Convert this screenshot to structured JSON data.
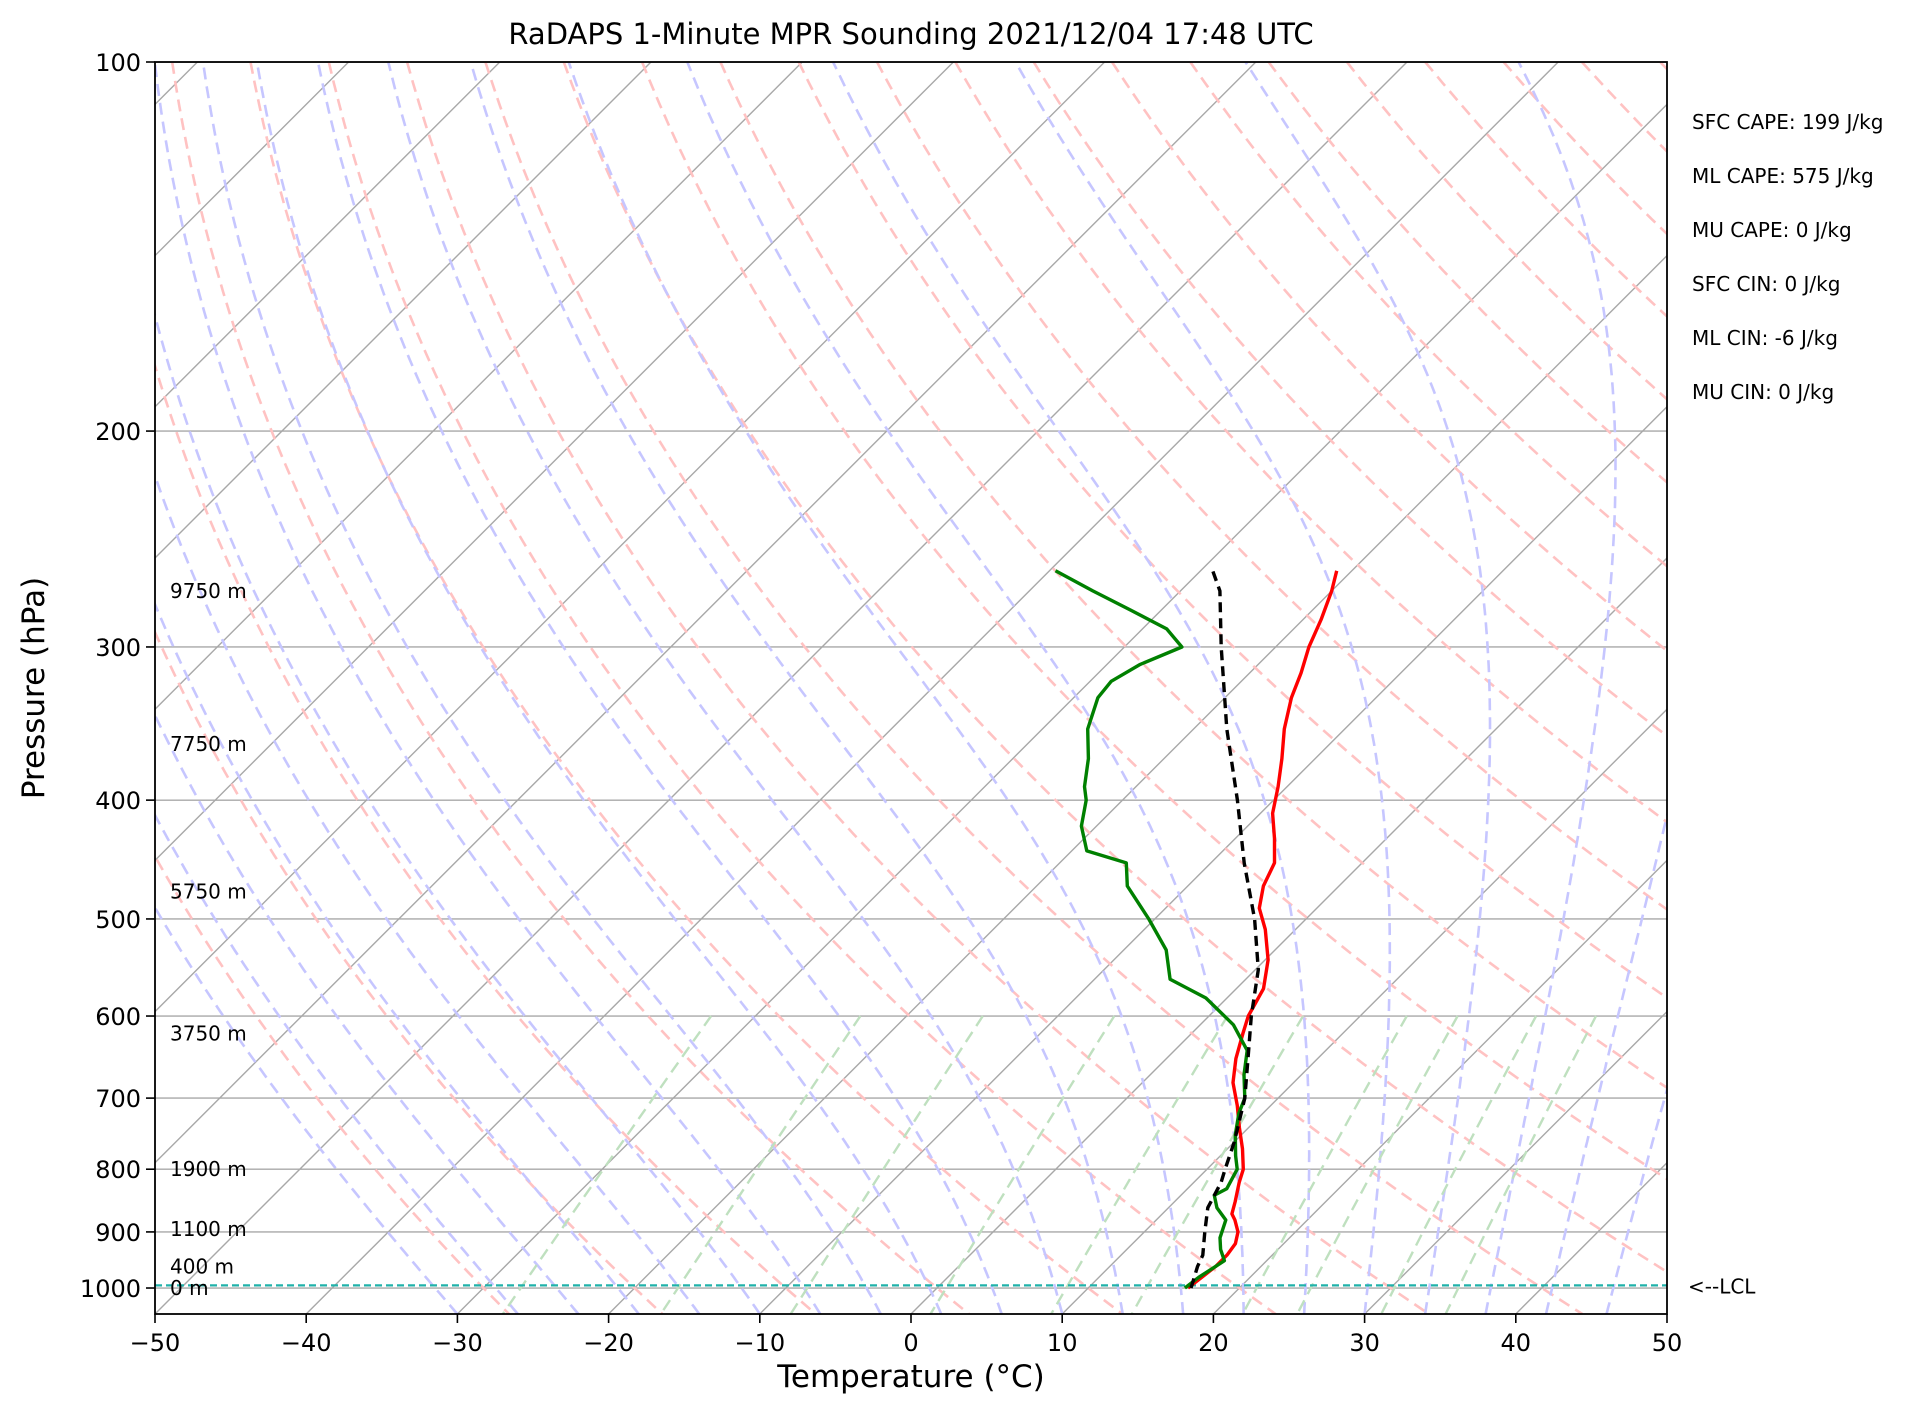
{
  "chart_data": {
    "type": "line",
    "title": "RaDAPS 1-Minute MPR Sounding 2021/12/04 17:48 UTC",
    "xlabel": "Temperature (°C)",
    "ylabel": "Pressure (hPa)",
    "xlim": [
      -50,
      50
    ],
    "ylim": [
      1050,
      100
    ],
    "y_scale": "log",
    "x_ticks": [
      -50,
      -40,
      -30,
      -20,
      -10,
      0,
      10,
      20,
      30,
      40,
      50
    ],
    "x_tick_labels": [
      "−50",
      "−40",
      "−30",
      "−20",
      "−10",
      "0",
      "10",
      "20",
      "30",
      "40",
      "50"
    ],
    "y_ticks": [
      100,
      200,
      300,
      400,
      500,
      600,
      700,
      800,
      900,
      1000
    ],
    "y_tick_labels": [
      "100",
      "200",
      "300",
      "400",
      "500",
      "600",
      "700",
      "800",
      "900",
      "1000"
    ],
    "grid": true,
    "colors": {
      "temperature": "#ff0000",
      "dewpoint": "#008000",
      "parcel": "#000000",
      "isotherm": "#a8a8a8",
      "dry_adiabat": "#ffc2c2",
      "moist_adiabat": "#c6c6ff",
      "mixing_ratio": "#bfe0bf",
      "lcl": "#20b2aa"
    },
    "series": [
      {
        "key": "temperature",
        "style": "solid",
        "points": [
          [
            1000,
            16.6
          ],
          [
            980,
            16.8
          ],
          [
            960,
            17.0
          ],
          [
            940,
            17.0
          ],
          [
            920,
            16.8
          ],
          [
            900,
            16.2
          ],
          [
            880,
            15.2
          ],
          [
            870,
            14.6
          ],
          [
            850,
            14.0
          ],
          [
            820,
            13.0
          ],
          [
            800,
            12.4
          ],
          [
            770,
            11.0
          ],
          [
            740,
            9.4
          ],
          [
            710,
            7.8
          ],
          [
            680,
            6.0
          ],
          [
            650,
            4.6
          ],
          [
            620,
            3.4
          ],
          [
            600,
            2.6
          ],
          [
            570,
            1.8
          ],
          [
            540,
            0.2
          ],
          [
            510,
            -2.0
          ],
          [
            490,
            -3.8
          ],
          [
            470,
            -5.0
          ],
          [
            450,
            -5.8
          ],
          [
            430,
            -7.4
          ],
          [
            410,
            -9.2
          ],
          [
            390,
            -10.6
          ],
          [
            370,
            -12.2
          ],
          [
            350,
            -14.0
          ],
          [
            330,
            -15.6
          ],
          [
            315,
            -16.6
          ],
          [
            300,
            -17.8
          ],
          [
            285,
            -18.8
          ],
          [
            270,
            -20.0
          ],
          [
            260,
            -21.0
          ]
        ]
      },
      {
        "key": "dewpoint",
        "style": "solid",
        "points": [
          [
            1000,
            16.4
          ],
          [
            980,
            16.6
          ],
          [
            960,
            17.0
          ],
          [
            950,
            17.2
          ],
          [
            930,
            16.2
          ],
          [
            910,
            15.4
          ],
          [
            880,
            14.6
          ],
          [
            860,
            13.2
          ],
          [
            840,
            12.2
          ],
          [
            830,
            12.6
          ],
          [
            800,
            12.0
          ],
          [
            780,
            11.0
          ],
          [
            750,
            9.6
          ],
          [
            720,
            8.4
          ],
          [
            700,
            7.8
          ],
          [
            670,
            6.2
          ],
          [
            640,
            4.8
          ],
          [
            610,
            2.2
          ],
          [
            580,
            -1.4
          ],
          [
            560,
            -5.0
          ],
          [
            530,
            -7.2
          ],
          [
            500,
            -10.4
          ],
          [
            470,
            -14.0
          ],
          [
            450,
            -15.6
          ],
          [
            440,
            -19.0
          ],
          [
            420,
            -21.0
          ],
          [
            400,
            -22.4
          ],
          [
            390,
            -23.4
          ],
          [
            370,
            -25.0
          ],
          [
            350,
            -27.0
          ],
          [
            330,
            -28.4
          ],
          [
            320,
            -28.6
          ],
          [
            310,
            -27.8
          ],
          [
            300,
            -26.2
          ],
          [
            290,
            -28.4
          ],
          [
            280,
            -32.0
          ],
          [
            270,
            -35.8
          ],
          [
            260,
            -39.6
          ]
        ]
      },
      {
        "key": "parcel",
        "style": "dashed",
        "points": [
          [
            1000,
            16.8
          ],
          [
            960,
            15.8
          ],
          [
            940,
            15.4
          ],
          [
            900,
            14.0
          ],
          [
            860,
            12.6
          ],
          [
            820,
            11.8
          ],
          [
            800,
            11.2
          ],
          [
            760,
            10.0
          ],
          [
            700,
            7.8
          ],
          [
            650,
            5.4
          ],
          [
            600,
            2.8
          ],
          [
            550,
            0.2
          ],
          [
            500,
            -3.4
          ],
          [
            450,
            -7.8
          ],
          [
            400,
            -12.4
          ],
          [
            350,
            -17.8
          ],
          [
            300,
            -23.6
          ],
          [
            270,
            -27.4
          ],
          [
            260,
            -29.2
          ]
        ]
      }
    ],
    "height_labels": [
      {
        "text": "9750 m",
        "p": 270
      },
      {
        "text": "7750 m",
        "p": 360
      },
      {
        "text": "5750 m",
        "p": 475
      },
      {
        "text": "3750 m",
        "p": 620
      },
      {
        "text": "1900 m",
        "p": 800
      },
      {
        "text": "1100 m",
        "p": 895
      },
      {
        "text": "400 m",
        "p": 960
      },
      {
        "text": "0 m",
        "p": 1000
      }
    ],
    "lcl": {
      "pressure": 995,
      "label": "<--LCL"
    },
    "indices": [
      "SFC CAPE: 199 J/kg",
      "ML CAPE: 575 J/kg",
      "MU CAPE: 0 J/kg",
      "SFC CIN: 0 J/kg",
      "ML CIN: -6 J/kg",
      "MU CIN: 0 J/kg"
    ]
  }
}
